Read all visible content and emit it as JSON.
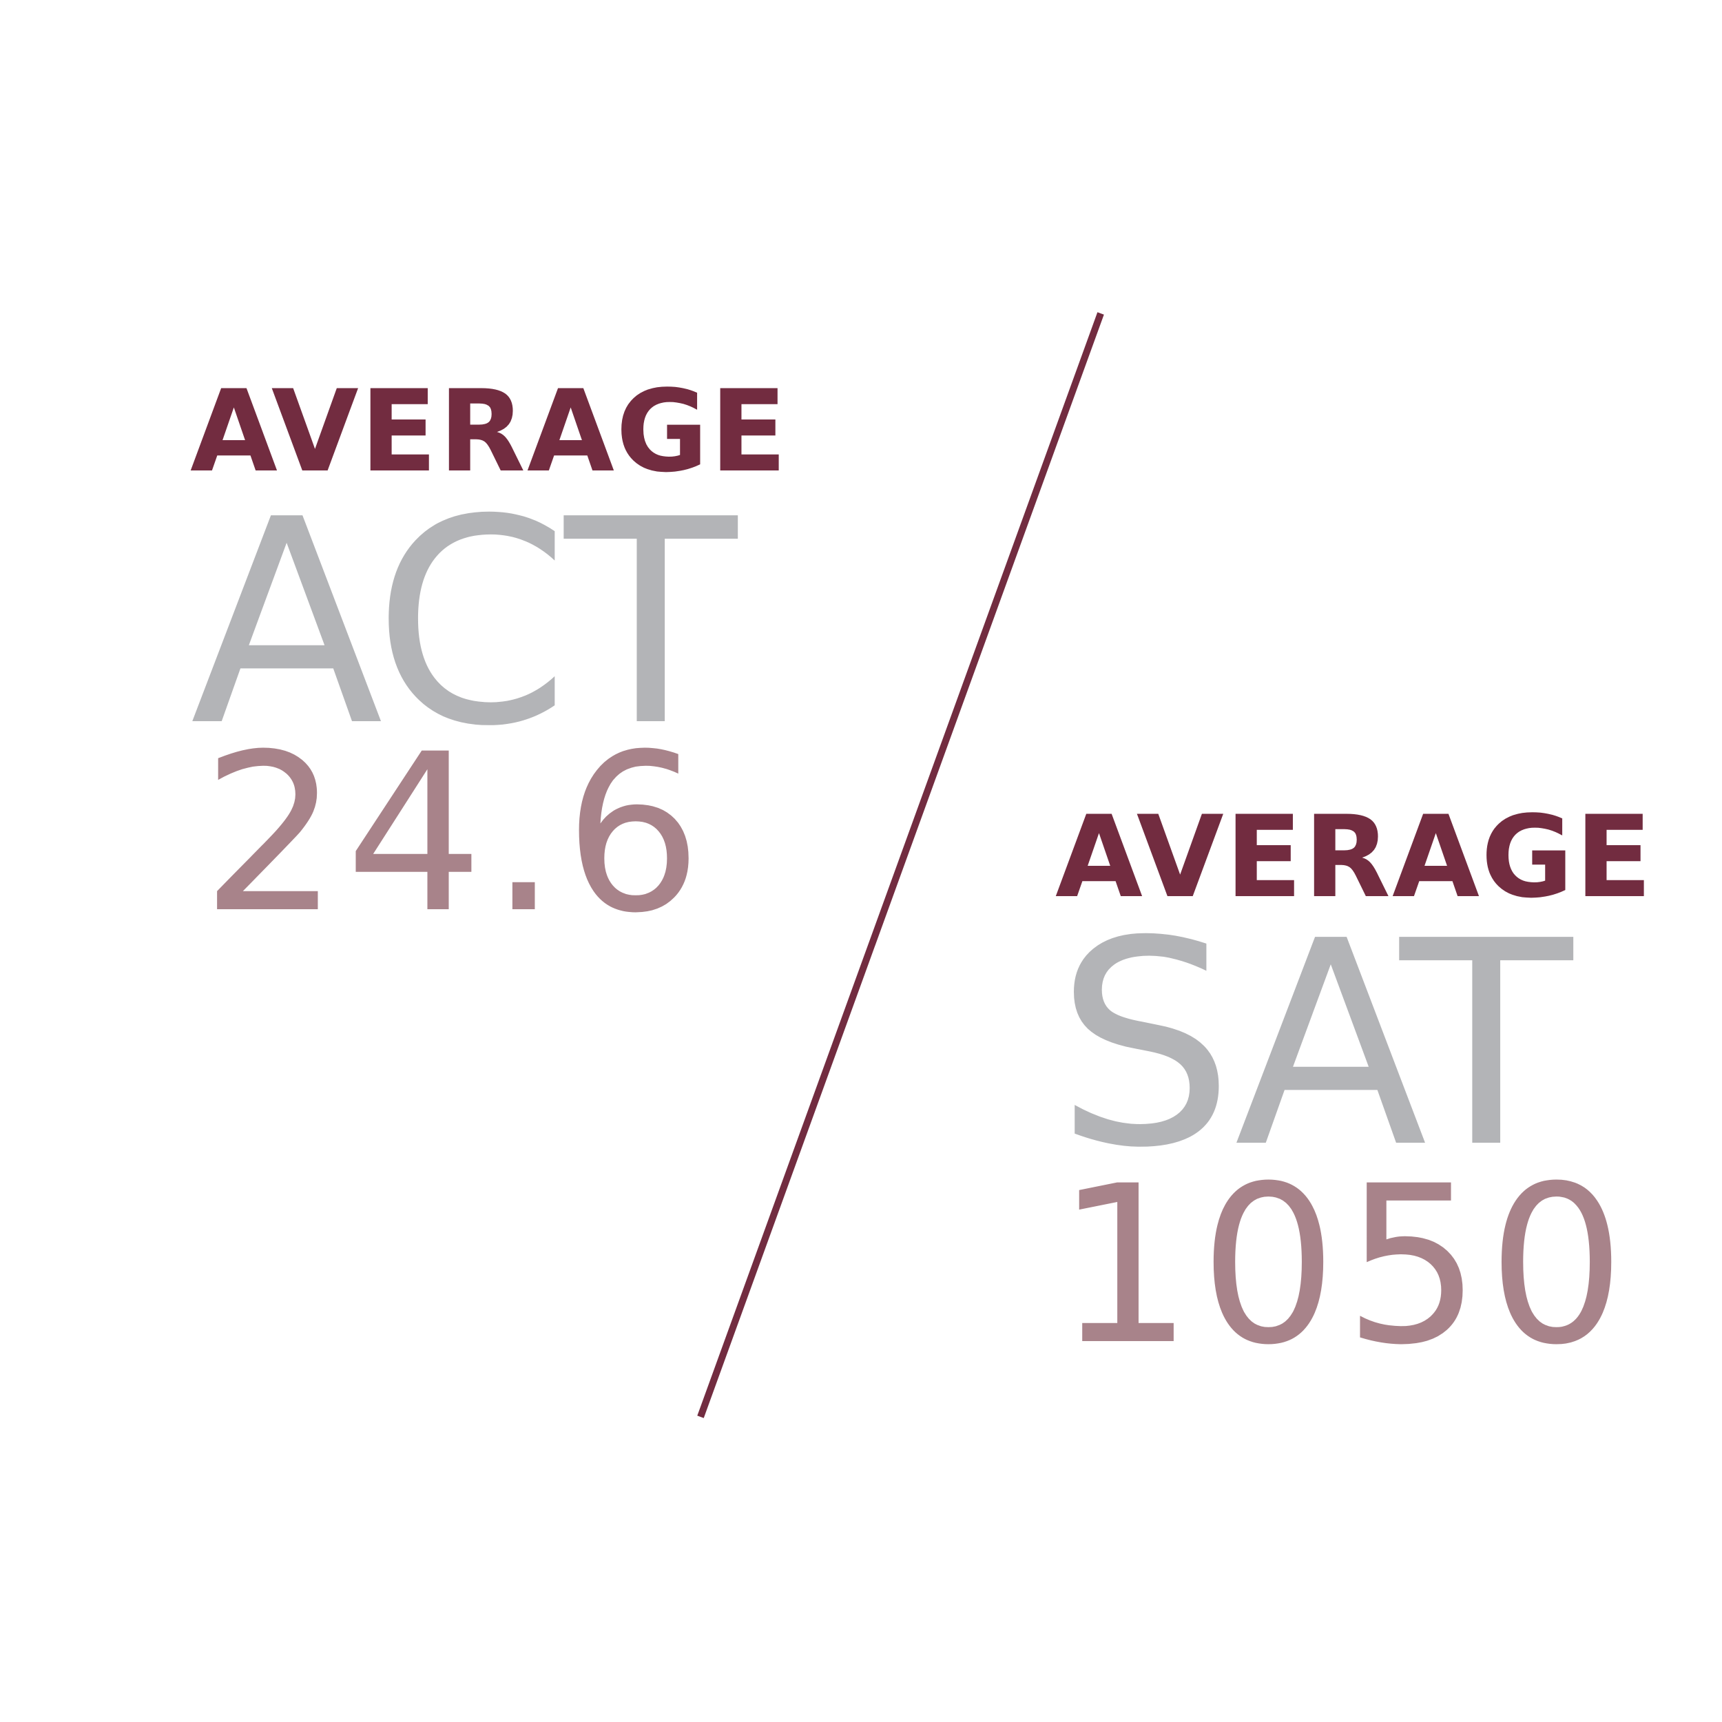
{
  "act": {
    "label": "AVERAGE",
    "name": "ACT",
    "score": "24.6"
  },
  "sat": {
    "label": "AVERAGE",
    "name": "SAT",
    "score": "1050"
  },
  "colors": {
    "label": "#722c40",
    "test_name": "#b3b4b7",
    "score": "#a8838a",
    "divider": "#722c40",
    "background": "#ffffff"
  }
}
